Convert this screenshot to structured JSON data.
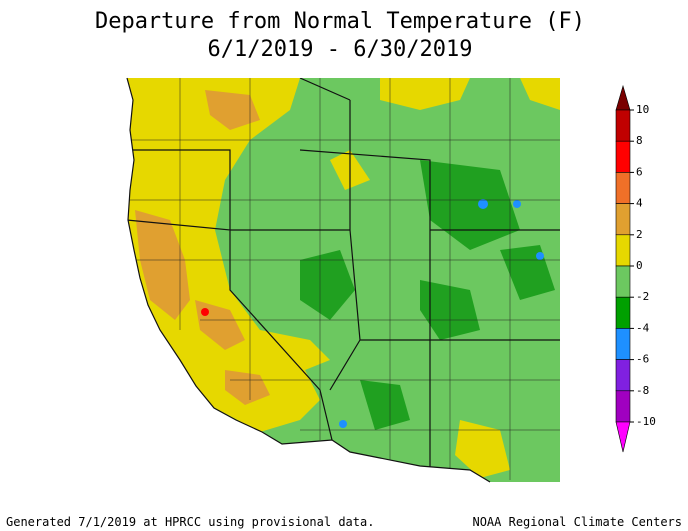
{
  "title": [
    "Departure from Normal Temperature (F)",
    "6/1/2019 - 6/30/2019"
  ],
  "legend": {
    "ticks": [
      10,
      8,
      6,
      4,
      2,
      0,
      -2,
      -4,
      -6,
      -8,
      -10
    ],
    "colors": [
      "#7a0000",
      "#c00000",
      "#ff0000",
      "#f07028",
      "#e0a030",
      "#e6d800",
      "#6cc860",
      "#00a000",
      "#1e90ff",
      "#8020e0",
      "#a000c0",
      "#ff00ff"
    ]
  },
  "footer": {
    "left": "Generated 7/1/2019 at HPRCC using provisional data.",
    "right": "NOAA Regional Climate Centers"
  }
}
